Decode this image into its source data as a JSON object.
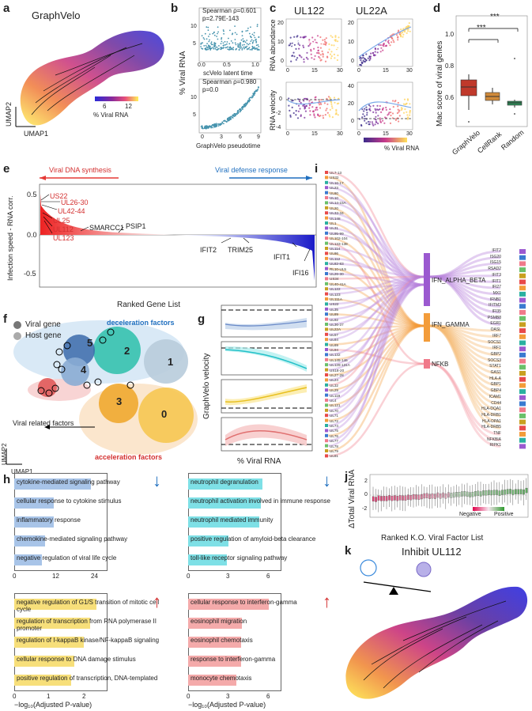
{
  "panels": {
    "a": {
      "letter": "a",
      "title": "GraphVelo",
      "xlabel": "UMAP1",
      "ylabel": "UMAP2",
      "cbar_ticks": [
        "6",
        "12"
      ],
      "cbar_label": "% Viral RNA"
    },
    "b": {
      "letter": "b",
      "ylabel": "% Viral RNA",
      "top_stats_1": "Spearman ρ=0.601",
      "top_stats_2": "p=2.79E-143",
      "top_xlabel": "scVelo latent time",
      "top_xticks": [
        "0.0",
        "0.5",
        "1.0"
      ],
      "top_yticks": [
        "10",
        "5"
      ],
      "bottom_stats_1": "Spearman ρ=0.980",
      "bottom_stats_2": "p=0.0",
      "bottom_xlabel": "GraphVelo pseudotime",
      "bottom_xticks": [
        "0",
        "3",
        "6",
        "9"
      ],
      "bottom_yticks": [
        "10",
        "5"
      ]
    },
    "c": {
      "letter": "c",
      "gene1": "UL122",
      "gene2": "UL22A",
      "ylabel_top": "RNA abundance",
      "ylabel_bottom": "RNA velocity",
      "xticks": [
        "0",
        "15",
        "30"
      ],
      "yticks_tl": [
        "20",
        "10",
        "0"
      ],
      "yticks_tr": [
        "20",
        "10",
        "0"
      ],
      "yticks_bl": [
        "0",
        "-2",
        "-4"
      ],
      "yticks_br": [
        "40",
        "20",
        "0"
      ],
      "cbar_label": "% Viral RNA"
    },
    "d": {
      "letter": "d",
      "ylabel": "Mac score of viral genes",
      "yticks": [
        "1.0",
        "0.8",
        "0.6"
      ],
      "categories": [
        "GraphVelo",
        "CellRank",
        "Random"
      ],
      "sig": [
        "***",
        "***"
      ]
    },
    "e": {
      "letter": "e",
      "left_arrow": "Viral DNA synthesis",
      "right_arrow": "Viral defense response",
      "ylabel": "Infection speed - RNA corr.",
      "xlabel": "Ranked Gene List",
      "yticks": [
        "0.5",
        "0.0",
        "-0.5"
      ],
      "viral_genes": [
        "US22",
        "UL26-30",
        "UL42-44",
        "UL25",
        "UL112",
        "UL123"
      ],
      "host_genes": [
        "SMARCC1",
        "PSIP1",
        "IFIT2",
        "TRIM25",
        "IFIT1",
        "IFI16"
      ]
    },
    "f": {
      "letter": "f",
      "legend_viral": "Viral gene",
      "legend_host": "Host gene",
      "top_label": "deceleration factors",
      "bottom_label": "acceleration factors",
      "arrow_label": "Viral related factors",
      "xlabel": "UMAP1",
      "ylabel": "UMAP2",
      "clusters": [
        "5",
        "2",
        "1",
        "4",
        "3",
        "0"
      ]
    },
    "g": {
      "letter": "g",
      "ylabel": "GraphVelo velocity",
      "xlabel": "% Viral RNA"
    },
    "h": {
      "letter": "h",
      "xlabel": "−log₁₀(Adjusted P-value)",
      "tl": {
        "terms": [
          "cytokine-mediated signaling pathway",
          "cellular response to cytokine stimulus",
          "inflammatory response",
          "chemokine-mediated signaling pathway",
          "negative regulation of viral life cycle"
        ],
        "values": [
          25,
          13,
          13,
          10,
          9
        ],
        "xticks": [
          "0",
          "12",
          "24"
        ],
        "arrow": "↓"
      },
      "tr": {
        "terms": [
          "neutrophil degranulation",
          "neutrophil activation involved in immune response",
          "neutrophil mediated immunity",
          "positive regulation of amyloid-beta clearance",
          "toll-like receptor signaling pathway"
        ],
        "values": [
          5.5,
          5.4,
          5.3,
          3.0,
          2.9
        ],
        "xticks": [
          "0",
          "3",
          "6"
        ],
        "arrow": "↓"
      },
      "bl": {
        "terms": [
          "negative regulation of G1/S transition of mitotic cell cycle",
          "regulation of transcription from RNA polymerase II promoter",
          "regulation of I-kappaB kinase/NF-kappaB signaling",
          "cellular response to DNA damage stimulus",
          "positive regulation of transcription, DNA-templated"
        ],
        "values": [
          2.6,
          2.4,
          2.2,
          1.9,
          1.8
        ],
        "xticks": [
          "0",
          "1",
          "2"
        ],
        "arrow": "↑"
      },
      "br": {
        "terms": [
          "cellular response to interferon-gamma",
          "eosinophil migration",
          "eosinophil chemotaxis",
          "response to interferon-gamma",
          "monocyte chemotaxis"
        ],
        "values": [
          6.0,
          4.0,
          3.9,
          3.9,
          3.6
        ],
        "xticks": [
          "0",
          "3",
          "6"
        ],
        "arrow": "↑"
      }
    },
    "i": {
      "letter": "i",
      "viral_genes": [
        "UL7-13",
        "US32",
        "UL16-17",
        "UL23",
        "UL80",
        "UL10",
        "UL14-15A",
        "UL20",
        "UL33-34",
        "UL148",
        "UL1",
        "UL31",
        "UL95-99",
        "UL102-104",
        "UL133-138",
        "UL114",
        "UL86",
        "UL112",
        "UL82-83",
        "RL10-UL5",
        "UL26-30",
        "US34",
        "UL40-41A",
        "UL122",
        "UL123",
        "UL111A",
        "US22",
        "UL35",
        "UL89",
        "UL92",
        "UL36-37",
        "UL22A",
        "UL57",
        "UL84",
        "UL69",
        "UL94",
        "UL132",
        "UL145-146",
        "UL128-131A",
        "US18-20",
        "UL27-28",
        "UL24",
        "UL32",
        "UL29",
        "UL119",
        "UL4",
        "UL121",
        "UL70",
        "UL71",
        "UL72",
        "UL74",
        "UL75",
        "UL76",
        "UL77",
        "UL78",
        "UL79",
        "UL81"
      ],
      "pathways": [
        "IFN_ALPHA_BETA",
        "IFN_GAMMA",
        "NFKB"
      ],
      "host_genes": [
        "IFIT2",
        "ISG20",
        "ISG15",
        "RSAD2",
        "IFIT3",
        "IFIT1",
        "IFI27",
        "MX1",
        "IFNB1",
        "IFITM3",
        "IFI35",
        "PSMB8",
        "EGR1",
        "OASL",
        "IRF7",
        "SOCS1",
        "IRF1",
        "GBP2",
        "SOCS3",
        "STAT1",
        "GAS1",
        "HLA-A",
        "GBP1",
        "GBP4",
        "ICAM1",
        "CD44",
        "HLA-DQA1",
        "HLA-DRB1",
        "HLA-DPA1",
        "HLA-DRB5",
        "TNF",
        "NFKBIA",
        "RIPK1"
      ],
      "colors": {
        "alpha": "#9b59d0",
        "gamma": "#f39c3a",
        "nfkb": "#f07a8a"
      }
    },
    "j": {
      "letter": "j",
      "ylabel": "ΔTotal Viral RNA",
      "xlabel": "Ranked K.O. Viral Factor List",
      "legend_neg": "Negative",
      "legend_pos": "Positive",
      "yticks": [
        "2",
        "0",
        "-2"
      ]
    },
    "k": {
      "letter": "k",
      "title": "Inhibit UL112"
    }
  }
}
